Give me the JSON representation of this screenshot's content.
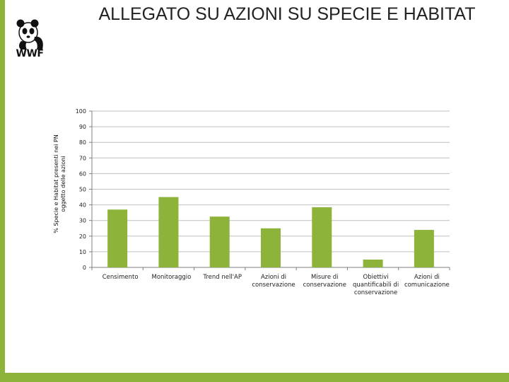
{
  "title": "ALLEGATO SU AZIONI SU SPECIE E HABITAT",
  "logo": {
    "text": "WWF",
    "icon": "panda-logo-icon"
  },
  "colors": {
    "accent": "#8db33a",
    "bar": "#8db33a",
    "grid": "#bfbfbf",
    "axis": "#7f7f7f"
  },
  "chart_data": {
    "type": "bar",
    "title": "",
    "xlabel": "",
    "ylabel": "% Specie e Habitat presenti nei PN oggetto delle azioni",
    "ylim": [
      0,
      100
    ],
    "yticks": [
      0,
      10,
      20,
      30,
      40,
      50,
      60,
      70,
      80,
      90,
      100
    ],
    "grid": true,
    "legend": "none",
    "categories": [
      [
        "Censimento"
      ],
      [
        "Monitoraggio"
      ],
      [
        "Trend nell'AP"
      ],
      [
        "Azioni di",
        "conservazione"
      ],
      [
        "Misure di",
        "conservazione"
      ],
      [
        "Obiettivi",
        "quantificabili di",
        "conservazione"
      ],
      [
        "Azioni di",
        "comunicazione"
      ]
    ],
    "values": [
      37,
      45,
      32.5,
      25,
      38.5,
      5,
      24
    ]
  }
}
